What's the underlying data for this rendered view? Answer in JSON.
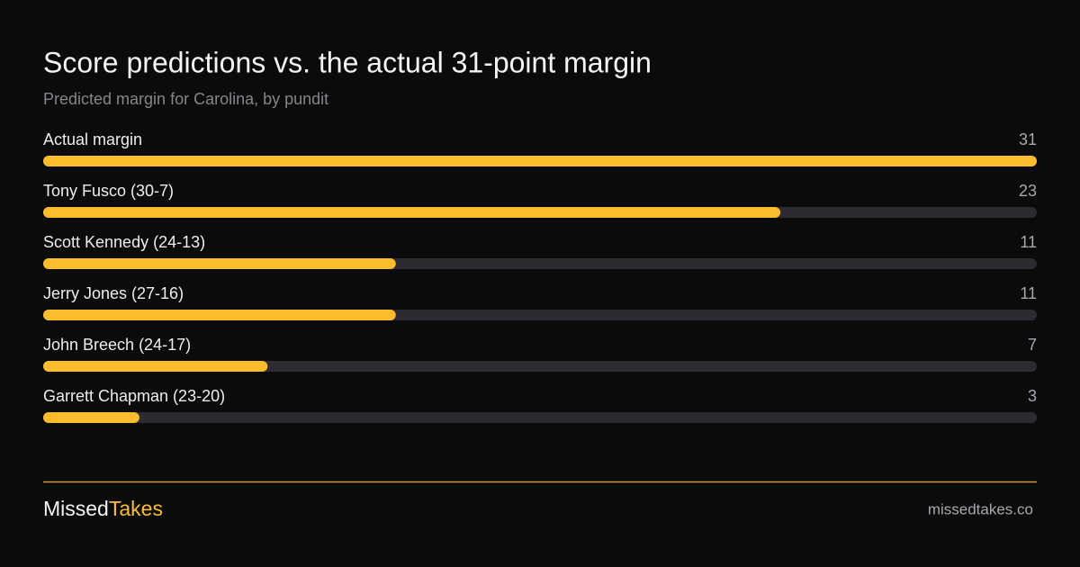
{
  "chart_data": {
    "type": "bar",
    "orientation": "horizontal",
    "title": "Score predictions vs. the actual 31-point margin",
    "subtitle": "Predicted margin for Carolina, by pundit",
    "categories": [
      "Actual margin",
      "Tony Fusco (30-7)",
      "Scott Kennedy (24-13)",
      "Jerry Jones (27-16)",
      "John Breech (24-17)",
      "Garrett Chapman (23-20)"
    ],
    "values": [
      31,
      23,
      11,
      11,
      7,
      3
    ],
    "color": "#fbbd2e",
    "xlim": [
      0,
      31
    ]
  },
  "footer": {
    "brand_first": "Missed",
    "brand_second": "Takes",
    "url": "missedtakes.co"
  }
}
